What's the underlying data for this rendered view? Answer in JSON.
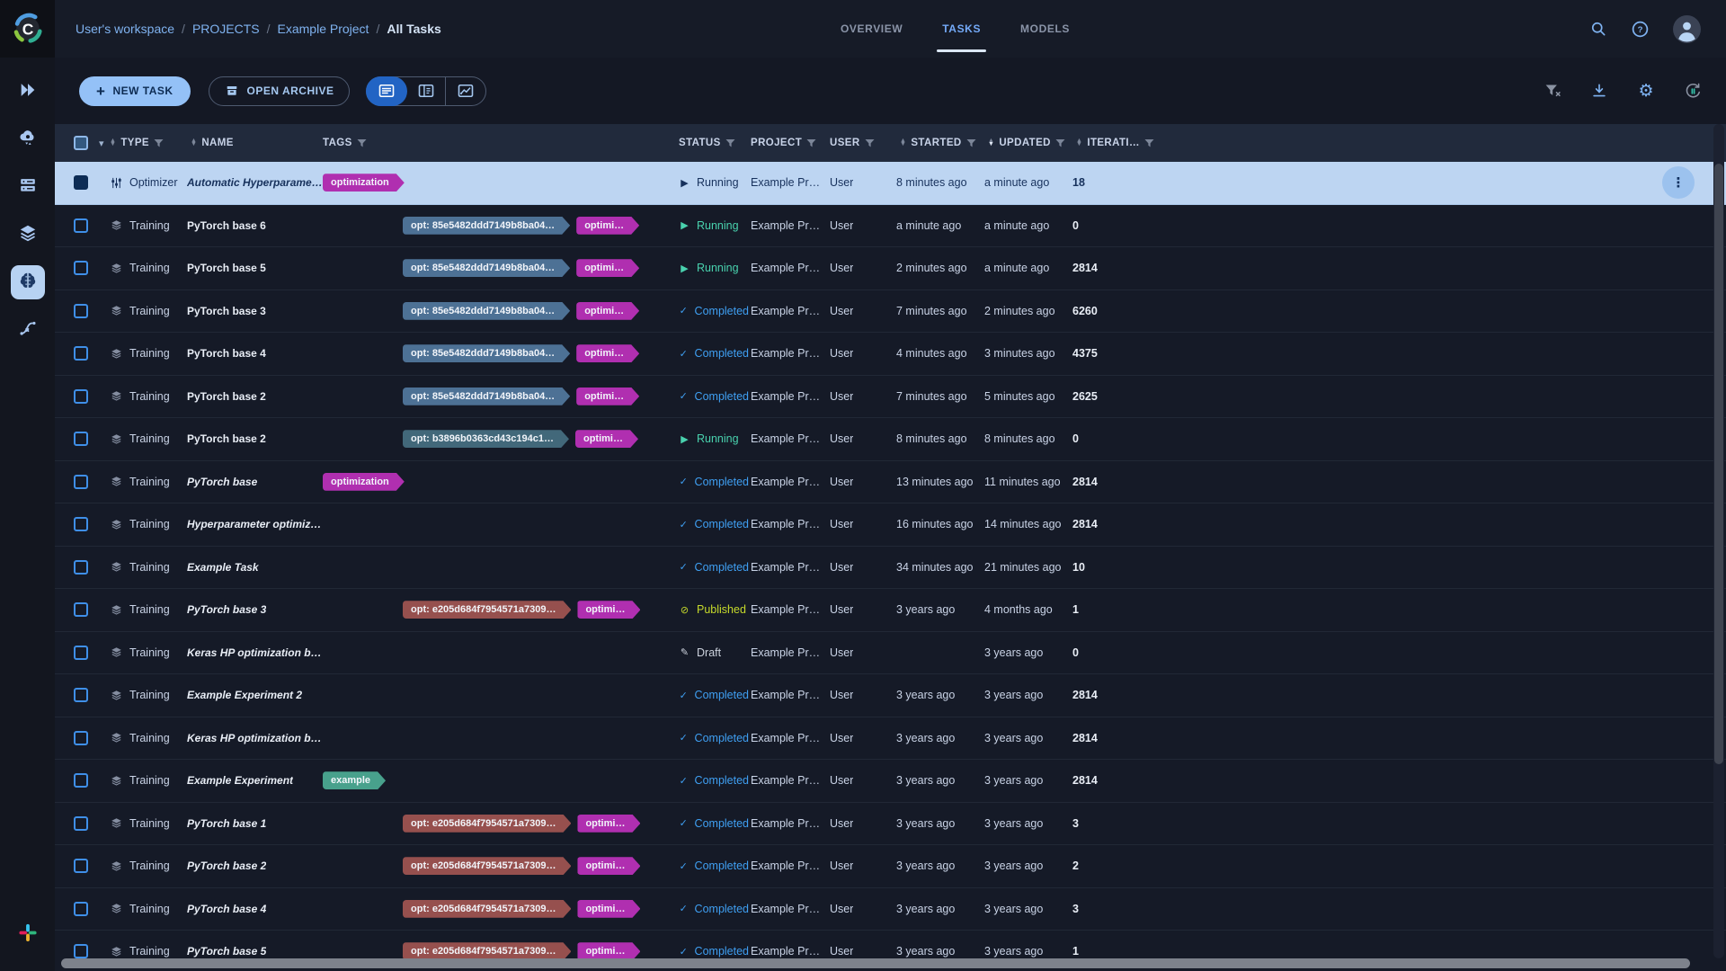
{
  "breadcrumb": {
    "items": [
      "User's workspace",
      "PROJECTS",
      "Example Project",
      "All Tasks"
    ],
    "separator": "/"
  },
  "tabs": [
    {
      "label": "OVERVIEW",
      "active": false
    },
    {
      "label": "TASKS",
      "active": true
    },
    {
      "label": "MODELS",
      "active": false
    }
  ],
  "toolbar": {
    "new_task_label": "NEW TASK",
    "open_archive_label": "OPEN ARCHIVE",
    "view_modes": [
      "table-view",
      "split-view",
      "chart-view"
    ],
    "active_view": "table-view",
    "right_icons": [
      "clear-filters-icon",
      "download-icon",
      "settings-icon",
      "auto-refresh-icon"
    ]
  },
  "sidebar": {
    "items": [
      {
        "name": "projects",
        "active": false
      },
      {
        "name": "serving",
        "active": false
      },
      {
        "name": "workers-queues",
        "active": false
      },
      {
        "name": "datasets",
        "active": false
      },
      {
        "name": "models",
        "active": true
      },
      {
        "name": "pipelines",
        "active": false
      }
    ],
    "bottom": [
      {
        "name": "slack"
      }
    ]
  },
  "table": {
    "columns": [
      {
        "label": "TYPE",
        "sortable": true,
        "filterable": true
      },
      {
        "label": "NAME",
        "sortable": true,
        "filterable": false
      },
      {
        "label": "TAGS",
        "sortable": false,
        "filterable": true
      },
      {
        "label": "STATUS",
        "sortable": false,
        "filterable": true
      },
      {
        "label": "PROJECT",
        "sortable": false,
        "filterable": true
      },
      {
        "label": "USER",
        "sortable": false,
        "filterable": true
      },
      {
        "label": "STARTED",
        "sortable": true,
        "filterable": true
      },
      {
        "label": "UPDATED",
        "sortable": true,
        "filterable": true,
        "sorted": "desc"
      },
      {
        "label": "ITERATI…",
        "sortable": true,
        "filterable": true
      }
    ],
    "statuses": {
      "Running": {
        "color": "#49d2ae",
        "glyph": "▶"
      },
      "Completed": {
        "color": "#3f9ff2",
        "glyph": "✓"
      },
      "Published": {
        "color": "#c6da2b",
        "glyph": "⊘"
      },
      "Draft": {
        "color": "#ccd2dd",
        "glyph": "✎"
      }
    },
    "selected_row_text_color": "#17315c",
    "rows": [
      {
        "type": "Optimizer",
        "name": "Automatic Hyperparamete…",
        "italic": true,
        "tags": [
          {
            "label": "optimization",
            "bg": "#b02fb0"
          }
        ],
        "indent": false,
        "status": "Running",
        "project": "Example Project",
        "user": "User",
        "started": "8 minutes ago",
        "updated": "a minute ago",
        "iteration": "18",
        "selected": true
      },
      {
        "type": "Training",
        "name": "PyTorch base 6",
        "italic": false,
        "tags": [
          {
            "label": "opt: 85e5482ddd7149b8ba04…",
            "bg": "#4d7195"
          },
          {
            "label": "optimi…",
            "bg": "#b02fb0"
          }
        ],
        "indent": true,
        "status": "Running",
        "project": "Example Project",
        "user": "User",
        "started": "a minute ago",
        "updated": "a minute ago",
        "iteration": "0",
        "selected": false
      },
      {
        "type": "Training",
        "name": "PyTorch base 5",
        "italic": false,
        "tags": [
          {
            "label": "opt: 85e5482ddd7149b8ba04…",
            "bg": "#4d7195"
          },
          {
            "label": "optimi…",
            "bg": "#b02fb0"
          }
        ],
        "indent": true,
        "status": "Running",
        "project": "Example Project",
        "user": "User",
        "started": "2 minutes ago",
        "updated": "a minute ago",
        "iteration": "2814",
        "selected": false
      },
      {
        "type": "Training",
        "name": "PyTorch base 3",
        "italic": false,
        "tags": [
          {
            "label": "opt: 85e5482ddd7149b8ba04…",
            "bg": "#4d7195"
          },
          {
            "label": "optimi…",
            "bg": "#b02fb0"
          }
        ],
        "indent": true,
        "status": "Completed",
        "project": "Example Project",
        "user": "User",
        "started": "7 minutes ago",
        "updated": "2 minutes ago",
        "iteration": "6260",
        "selected": false
      },
      {
        "type": "Training",
        "name": "PyTorch base 4",
        "italic": false,
        "tags": [
          {
            "label": "opt: 85e5482ddd7149b8ba04…",
            "bg": "#4d7195"
          },
          {
            "label": "optimi…",
            "bg": "#b02fb0"
          }
        ],
        "indent": true,
        "status": "Completed",
        "project": "Example Project",
        "user": "User",
        "started": "4 minutes ago",
        "updated": "3 minutes ago",
        "iteration": "4375",
        "selected": false
      },
      {
        "type": "Training",
        "name": "PyTorch base 2",
        "italic": false,
        "tags": [
          {
            "label": "opt: 85e5482ddd7149b8ba04…",
            "bg": "#4d7195"
          },
          {
            "label": "optimi…",
            "bg": "#b02fb0"
          }
        ],
        "indent": true,
        "status": "Completed",
        "project": "Example Project",
        "user": "User",
        "started": "7 minutes ago",
        "updated": "5 minutes ago",
        "iteration": "2625",
        "selected": false
      },
      {
        "type": "Training",
        "name": "PyTorch base 2",
        "italic": false,
        "tags": [
          {
            "label": "opt: b3896b0363cd43c194c1…",
            "bg": "#42687a"
          },
          {
            "label": "optimi…",
            "bg": "#b02fb0"
          }
        ],
        "indent": true,
        "status": "Running",
        "project": "Example Project",
        "user": "User",
        "started": "8 minutes ago",
        "updated": "8 minutes ago",
        "iteration": "0",
        "selected": false
      },
      {
        "type": "Training",
        "name": "PyTorch base",
        "italic": true,
        "tags": [
          {
            "label": "optimization",
            "bg": "#b02fb0"
          }
        ],
        "indent": false,
        "status": "Completed",
        "project": "Example Project",
        "user": "User",
        "started": "13 minutes ago",
        "updated": "11 minutes ago",
        "iteration": "2814",
        "selected": false
      },
      {
        "type": "Training",
        "name": "Hyperparameter optimizati…",
        "italic": true,
        "tags": [],
        "indent": false,
        "status": "Completed",
        "project": "Example Project",
        "user": "User",
        "started": "16 minutes ago",
        "updated": "14 minutes ago",
        "iteration": "2814",
        "selected": false
      },
      {
        "type": "Training",
        "name": "Example Task",
        "italic": true,
        "tags": [],
        "indent": false,
        "status": "Completed",
        "project": "Example Project",
        "user": "User",
        "started": "34 minutes ago",
        "updated": "21 minutes ago",
        "iteration": "10",
        "selected": false
      },
      {
        "type": "Training",
        "name": "PyTorch base 3",
        "italic": true,
        "tags": [
          {
            "label": "opt: e205d684f7954571a7309…",
            "bg": "#96504e"
          },
          {
            "label": "optimi…",
            "bg": "#b02fb0"
          }
        ],
        "indent": true,
        "status": "Published",
        "project": "Example Project",
        "user": "User",
        "started": "3 years ago",
        "updated": "4 months ago",
        "iteration": "1",
        "selected": false
      },
      {
        "type": "Training",
        "name": "Keras HP optimization base",
        "italic": true,
        "tags": [],
        "indent": false,
        "status": "Draft",
        "project": "Example Project/Hy…",
        "user": "User",
        "started": "",
        "updated": "3 years ago",
        "iteration": "0",
        "selected": false
      },
      {
        "type": "Training",
        "name": "Example Experiment 2",
        "italic": true,
        "tags": [],
        "indent": false,
        "status": "Completed",
        "project": "Example Project",
        "user": "User",
        "started": "3 years ago",
        "updated": "3 years ago",
        "iteration": "2814",
        "selected": false
      },
      {
        "type": "Training",
        "name": "Keras HP optimization base",
        "italic": true,
        "tags": [],
        "indent": false,
        "status": "Completed",
        "project": "Example Project/Hy…",
        "user": "User",
        "started": "3 years ago",
        "updated": "3 years ago",
        "iteration": "2814",
        "selected": false
      },
      {
        "type": "Training",
        "name": "Example Experiment",
        "italic": true,
        "tags": [
          {
            "label": "example",
            "bg": "#48a18c"
          }
        ],
        "indent": false,
        "status": "Completed",
        "project": "Example Project",
        "user": "User",
        "started": "3 years ago",
        "updated": "3 years ago",
        "iteration": "2814",
        "selected": false
      },
      {
        "type": "Training",
        "name": "PyTorch base 1",
        "italic": true,
        "tags": [
          {
            "label": "opt: e205d684f7954571a7309…",
            "bg": "#96504e"
          },
          {
            "label": "optimi…",
            "bg": "#b02fb0"
          }
        ],
        "indent": true,
        "status": "Completed",
        "project": "Example Project",
        "user": "User",
        "started": "3 years ago",
        "updated": "3 years ago",
        "iteration": "3",
        "selected": false
      },
      {
        "type": "Training",
        "name": "PyTorch base 2",
        "italic": true,
        "tags": [
          {
            "label": "opt: e205d684f7954571a7309…",
            "bg": "#96504e"
          },
          {
            "label": "optimi…",
            "bg": "#b02fb0"
          }
        ],
        "indent": true,
        "status": "Completed",
        "project": "Example Project",
        "user": "User",
        "started": "3 years ago",
        "updated": "3 years ago",
        "iteration": "2",
        "selected": false
      },
      {
        "type": "Training",
        "name": "PyTorch base 4",
        "italic": true,
        "tags": [
          {
            "label": "opt: e205d684f7954571a7309…",
            "bg": "#96504e"
          },
          {
            "label": "optimi…",
            "bg": "#b02fb0"
          }
        ],
        "indent": true,
        "status": "Completed",
        "project": "Example Project",
        "user": "User",
        "started": "3 years ago",
        "updated": "3 years ago",
        "iteration": "3",
        "selected": false
      },
      {
        "type": "Training",
        "name": "PyTorch base 5",
        "italic": true,
        "tags": [
          {
            "label": "opt: e205d684f7954571a7309…",
            "bg": "#96504e"
          },
          {
            "label": "optimi…",
            "bg": "#b02fb0"
          }
        ],
        "indent": true,
        "status": "Completed",
        "project": "Example Project",
        "user": "User",
        "started": "3 years ago",
        "updated": "3 years ago",
        "iteration": "1",
        "selected": false
      }
    ]
  }
}
